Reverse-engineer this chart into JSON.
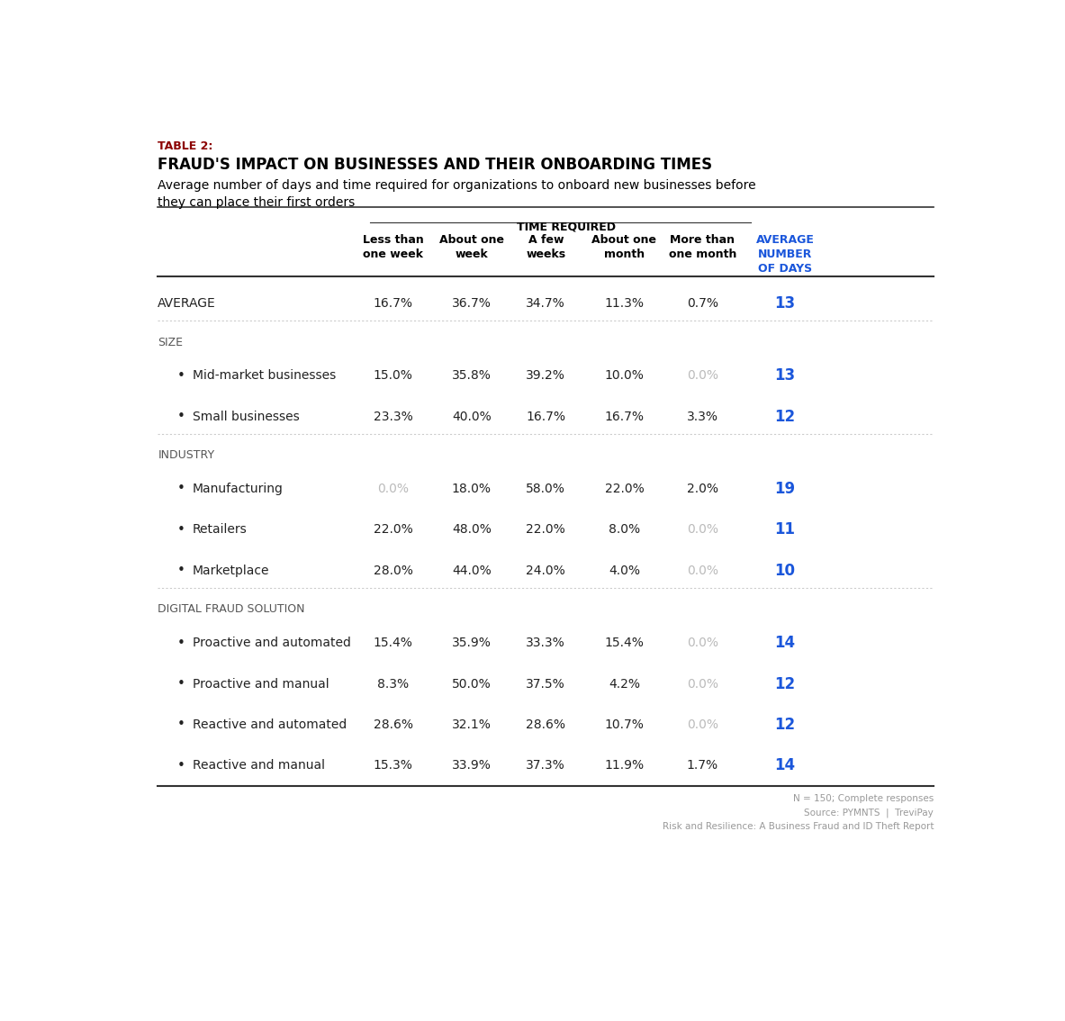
{
  "table_label": "TABLE 2:",
  "title": "FRAUD'S IMPACT ON BUSINESSES AND THEIR ONBOARDING TIMES",
  "subtitle": "Average number of days and time required for organizations to onboard new businesses before\nthey can place their first orders",
  "col_group_header": "TIME REQUIRED",
  "col_headers": [
    "Less than\none week",
    "About one\nweek",
    "A few\nweeks",
    "About one\nmonth",
    "More than\none month",
    "AVERAGE\nNUMBER\nOF DAYS"
  ],
  "footer_lines": [
    "N = 150; Complete responses",
    "Source: PYMNTS  |  TreviPay",
    "Risk and Resilience: A Business Fraud and ID Theft Report"
  ],
  "rows": [
    {
      "label": "AVERAGE",
      "indent": 0,
      "bullet": false,
      "section_header": false,
      "values": [
        "16.7%",
        "36.7%",
        "34.7%",
        "11.3%",
        "0.7%",
        "13"
      ],
      "grayed": [
        false,
        false,
        false,
        false,
        false,
        false
      ],
      "avg_days_blue": true,
      "separator_after": "dotted"
    },
    {
      "label": "SIZE",
      "indent": 0,
      "bullet": false,
      "section_header": true,
      "values": [
        "",
        "",
        "",
        "",
        "",
        ""
      ],
      "grayed": [
        false,
        false,
        false,
        false,
        false,
        false
      ],
      "avg_days_blue": false,
      "separator_after": null
    },
    {
      "label": "Mid-market businesses",
      "indent": 1,
      "bullet": true,
      "section_header": false,
      "values": [
        "15.0%",
        "35.8%",
        "39.2%",
        "10.0%",
        "0.0%",
        "13"
      ],
      "grayed": [
        false,
        false,
        false,
        false,
        true,
        false
      ],
      "avg_days_blue": true,
      "separator_after": null
    },
    {
      "label": "Small businesses",
      "indent": 1,
      "bullet": true,
      "section_header": false,
      "values": [
        "23.3%",
        "40.0%",
        "16.7%",
        "16.7%",
        "3.3%",
        "12"
      ],
      "grayed": [
        false,
        false,
        false,
        false,
        false,
        false
      ],
      "avg_days_blue": true,
      "separator_after": "dotted"
    },
    {
      "label": "INDUSTRY",
      "indent": 0,
      "bullet": false,
      "section_header": true,
      "values": [
        "",
        "",
        "",
        "",
        "",
        ""
      ],
      "grayed": [
        false,
        false,
        false,
        false,
        false,
        false
      ],
      "avg_days_blue": false,
      "separator_after": null
    },
    {
      "label": "Manufacturing",
      "indent": 1,
      "bullet": true,
      "section_header": false,
      "values": [
        "0.0%",
        "18.0%",
        "58.0%",
        "22.0%",
        "2.0%",
        "19"
      ],
      "grayed": [
        true,
        false,
        false,
        false,
        false,
        false
      ],
      "avg_days_blue": true,
      "separator_after": null
    },
    {
      "label": "Retailers",
      "indent": 1,
      "bullet": true,
      "section_header": false,
      "values": [
        "22.0%",
        "48.0%",
        "22.0%",
        "8.0%",
        "0.0%",
        "11"
      ],
      "grayed": [
        false,
        false,
        false,
        false,
        true,
        false
      ],
      "avg_days_blue": true,
      "separator_after": null
    },
    {
      "label": "Marketplace",
      "indent": 1,
      "bullet": true,
      "section_header": false,
      "values": [
        "28.0%",
        "44.0%",
        "24.0%",
        "4.0%",
        "0.0%",
        "10"
      ],
      "grayed": [
        false,
        false,
        false,
        false,
        true,
        false
      ],
      "avg_days_blue": true,
      "separator_after": "dotted"
    },
    {
      "label": "DIGITAL FRAUD SOLUTION",
      "indent": 0,
      "bullet": false,
      "section_header": true,
      "values": [
        "",
        "",
        "",
        "",
        "",
        ""
      ],
      "grayed": [
        false,
        false,
        false,
        false,
        false,
        false
      ],
      "avg_days_blue": false,
      "separator_after": null
    },
    {
      "label": "Proactive and automated",
      "indent": 1,
      "bullet": true,
      "section_header": false,
      "values": [
        "15.4%",
        "35.9%",
        "33.3%",
        "15.4%",
        "0.0%",
        "14"
      ],
      "grayed": [
        false,
        false,
        false,
        false,
        true,
        false
      ],
      "avg_days_blue": true,
      "separator_after": null
    },
    {
      "label": "Proactive and manual",
      "indent": 1,
      "bullet": true,
      "section_header": false,
      "values": [
        "8.3%",
        "50.0%",
        "37.5%",
        "4.2%",
        "0.0%",
        "12"
      ],
      "grayed": [
        false,
        false,
        false,
        false,
        true,
        false
      ],
      "avg_days_blue": true,
      "separator_after": null
    },
    {
      "label": "Reactive and automated",
      "indent": 1,
      "bullet": true,
      "section_header": false,
      "values": [
        "28.6%",
        "32.1%",
        "28.6%",
        "10.7%",
        "0.0%",
        "12"
      ],
      "grayed": [
        false,
        false,
        false,
        false,
        true,
        false
      ],
      "avg_days_blue": true,
      "separator_after": null
    },
    {
      "label": "Reactive and manual",
      "indent": 1,
      "bullet": true,
      "section_header": false,
      "values": [
        "15.3%",
        "33.9%",
        "37.3%",
        "11.9%",
        "1.7%",
        "14"
      ],
      "grayed": [
        false,
        false,
        false,
        false,
        false,
        false
      ],
      "avg_days_blue": true,
      "separator_after": null
    }
  ],
  "colors": {
    "background": "#ffffff",
    "title_color": "#000000",
    "table_label_color": "#8B0000",
    "header_text": "#000000",
    "section_header_text": "#555555",
    "row_text": "#222222",
    "grayed_text": "#bbbbbb",
    "avg_days_blue": "#1a56db",
    "dotted_line": "#cccccc",
    "solid_line": "#333333",
    "col_group_header": "#000000",
    "col_last_header_blue": "#1a56db",
    "footer_text": "#999999"
  }
}
